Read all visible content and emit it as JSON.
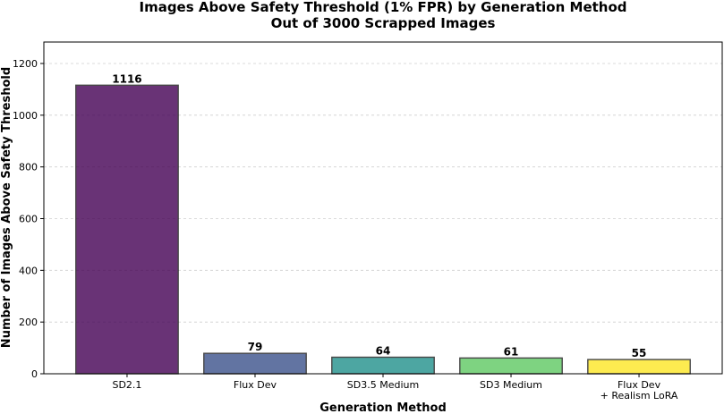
{
  "chart_data": {
    "type": "bar",
    "title": [
      "Images Above Safety Threshold (1% FPR) by Generation Method",
      "Out of 3000 Scrapped Images"
    ],
    "xlabel": "Generation Method",
    "ylabel": "Number of Images Above Safety Threshold",
    "categories": [
      [
        "SD2.1"
      ],
      [
        "Flux Dev"
      ],
      [
        "SD3.5 Medium"
      ],
      [
        "SD3 Medium"
      ],
      [
        "Flux Dev",
        "+ Realism LoRA"
      ]
    ],
    "values": [
      1116,
      79,
      64,
      61,
      55
    ],
    "data_labels": [
      "1116",
      "79",
      "64",
      "61",
      "55"
    ],
    "colors": [
      "#440154",
      "#3b528b",
      "#21918c",
      "#5ec962",
      "#fde725"
    ],
    "ylim": [
      0,
      1283
    ],
    "yticks": [
      0,
      200,
      400,
      600,
      800,
      1000,
      1200
    ],
    "grid": true,
    "grid_axis": "y",
    "legend": "none"
  }
}
